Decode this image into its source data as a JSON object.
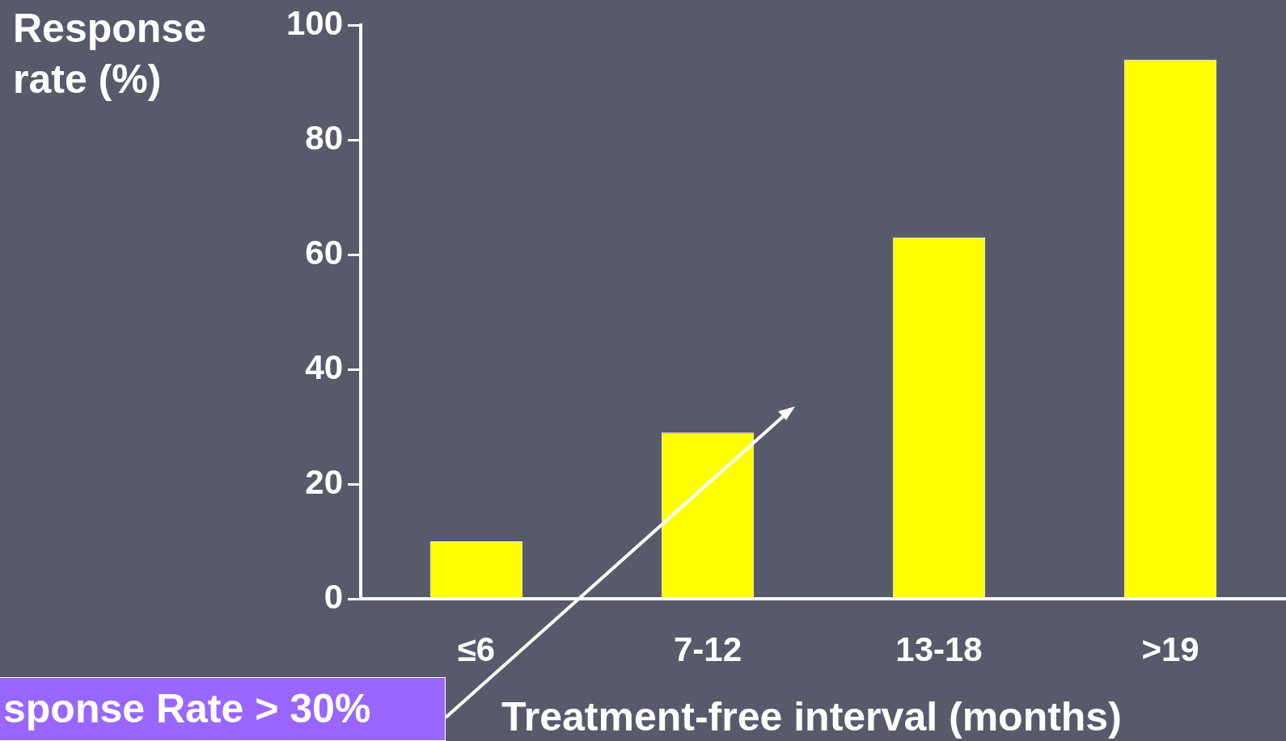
{
  "chart_data": {
    "type": "bar",
    "xlabel": "Treatment-free interval (months)",
    "ylabel": "Response rate (%)",
    "categories": [
      "≤6",
      "7-12",
      "13-18",
      ">19"
    ],
    "values": [
      10,
      29,
      63,
      94
    ],
    "color": "#ffff00",
    "ylim": [
      0,
      100
    ],
    "yticks": [
      0,
      20,
      40,
      60,
      80,
      100
    ],
    "grid": false,
    "legend": false,
    "annotations": [
      "sponse Rate > 30%"
    ]
  }
}
